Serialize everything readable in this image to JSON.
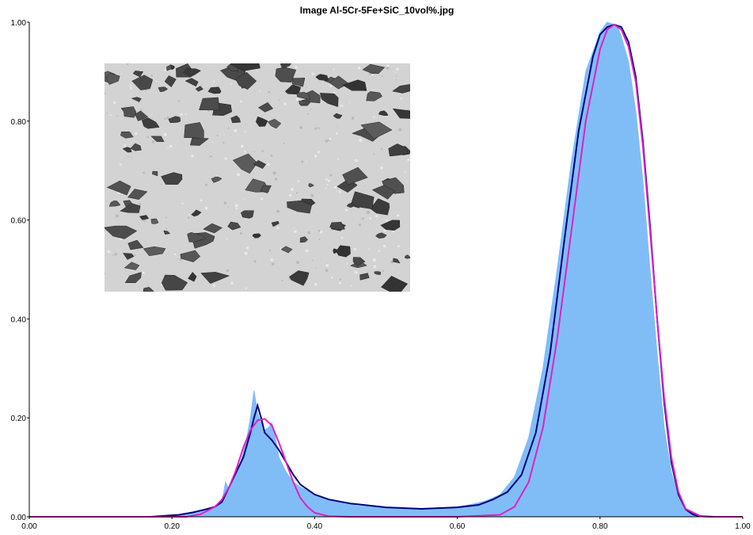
{
  "chart_data": {
    "type": "area",
    "title": "Image Al-5Cr-5Fe+SiC_10vol%.jpg",
    "xlabel": "",
    "ylabel": "",
    "xlim": [
      0,
      1
    ],
    "ylim": [
      0,
      1
    ],
    "x_ticks": [
      "0.00",
      "0.20",
      "0.40",
      "0.60",
      "0.80",
      "1.00"
    ],
    "y_ticks": [
      "0.00",
      "0.20",
      "0.40",
      "0.60",
      "0.80",
      "1.00"
    ],
    "grid": false,
    "legend": "none",
    "inset": "grayscale micrograph of the sample (dark SiC particles in a light matrix), top-left",
    "colors": {
      "histogram": "#80bdf7",
      "measured": "#000080",
      "fit": "#e020c0",
      "axis": "#000000"
    },
    "series": [
      {
        "role": "histogram",
        "x": [
          0.17,
          0.19,
          0.21,
          0.22,
          0.23,
          0.24,
          0.25,
          0.26,
          0.27,
          0.275,
          0.28,
          0.285,
          0.29,
          0.295,
          0.3,
          0.305,
          0.31,
          0.315,
          0.32,
          0.325,
          0.33,
          0.335,
          0.34,
          0.345,
          0.35,
          0.36,
          0.37,
          0.38,
          0.4,
          0.42,
          0.44,
          0.46,
          0.5,
          0.55,
          0.6,
          0.62,
          0.64,
          0.66,
          0.68,
          0.7,
          0.72,
          0.74,
          0.76,
          0.78,
          0.8,
          0.81,
          0.82,
          0.825,
          0.83,
          0.84,
          0.85,
          0.86,
          0.87,
          0.88,
          0.89,
          0.9,
          0.91,
          0.92,
          0.93,
          0.94,
          0.96,
          1.0
        ],
        "values": [
          0.0,
          0.002,
          0.004,
          0.006,
          0.009,
          0.013,
          0.016,
          0.02,
          0.03,
          0.07,
          0.055,
          0.075,
          0.1,
          0.105,
          0.13,
          0.16,
          0.2,
          0.255,
          0.21,
          0.19,
          0.175,
          0.18,
          0.19,
          0.16,
          0.12,
          0.09,
          0.07,
          0.06,
          0.045,
          0.035,
          0.028,
          0.022,
          0.018,
          0.016,
          0.02,
          0.025,
          0.032,
          0.045,
          0.08,
          0.16,
          0.3,
          0.5,
          0.72,
          0.9,
          0.98,
          1.0,
          0.995,
          0.99,
          0.97,
          0.92,
          0.82,
          0.68,
          0.5,
          0.33,
          0.18,
          0.09,
          0.04,
          0.015,
          0.005,
          0.002,
          0.0,
          0.0
        ]
      },
      {
        "role": "measured",
        "x": [
          0.0,
          0.17,
          0.19,
          0.21,
          0.23,
          0.25,
          0.26,
          0.27,
          0.28,
          0.29,
          0.3,
          0.31,
          0.315,
          0.32,
          0.325,
          0.33,
          0.34,
          0.35,
          0.36,
          0.37,
          0.38,
          0.4,
          0.42,
          0.45,
          0.5,
          0.55,
          0.6,
          0.63,
          0.65,
          0.67,
          0.69,
          0.71,
          0.73,
          0.75,
          0.77,
          0.79,
          0.8,
          0.81,
          0.82,
          0.83,
          0.84,
          0.85,
          0.86,
          0.87,
          0.88,
          0.89,
          0.9,
          0.91,
          0.92,
          0.93,
          0.94,
          0.96,
          1.0
        ],
        "values": [
          0.0,
          0.0,
          0.002,
          0.004,
          0.009,
          0.016,
          0.02,
          0.03,
          0.06,
          0.09,
          0.12,
          0.17,
          0.2,
          0.225,
          0.2,
          0.17,
          0.155,
          0.135,
          0.11,
          0.085,
          0.065,
          0.045,
          0.035,
          0.027,
          0.019,
          0.016,
          0.019,
          0.024,
          0.035,
          0.05,
          0.085,
          0.17,
          0.33,
          0.56,
          0.78,
          0.93,
          0.975,
          0.99,
          0.995,
          0.99,
          0.96,
          0.89,
          0.76,
          0.59,
          0.4,
          0.23,
          0.11,
          0.045,
          0.015,
          0.005,
          0.001,
          0.0,
          0.0
        ]
      },
      {
        "role": "fit",
        "x": [
          0.0,
          0.22,
          0.24,
          0.26,
          0.27,
          0.28,
          0.29,
          0.3,
          0.31,
          0.32,
          0.33,
          0.34,
          0.35,
          0.36,
          0.37,
          0.38,
          0.39,
          0.4,
          0.42,
          0.45,
          0.6,
          0.66,
          0.68,
          0.7,
          0.72,
          0.74,
          0.76,
          0.78,
          0.8,
          0.81,
          0.82,
          0.83,
          0.84,
          0.85,
          0.86,
          0.87,
          0.88,
          0.89,
          0.9,
          0.91,
          0.92,
          0.94,
          0.96,
          1.0
        ],
        "values": [
          0.0,
          0.0,
          0.005,
          0.02,
          0.035,
          0.06,
          0.095,
          0.14,
          0.175,
          0.195,
          0.198,
          0.185,
          0.15,
          0.11,
          0.07,
          0.038,
          0.02,
          0.008,
          0.001,
          0.0,
          0.0,
          0.004,
          0.02,
          0.07,
          0.18,
          0.36,
          0.58,
          0.8,
          0.945,
          0.985,
          0.995,
          0.985,
          0.95,
          0.88,
          0.75,
          0.58,
          0.4,
          0.24,
          0.12,
          0.05,
          0.016,
          0.002,
          0.0,
          0.0
        ]
      }
    ]
  }
}
